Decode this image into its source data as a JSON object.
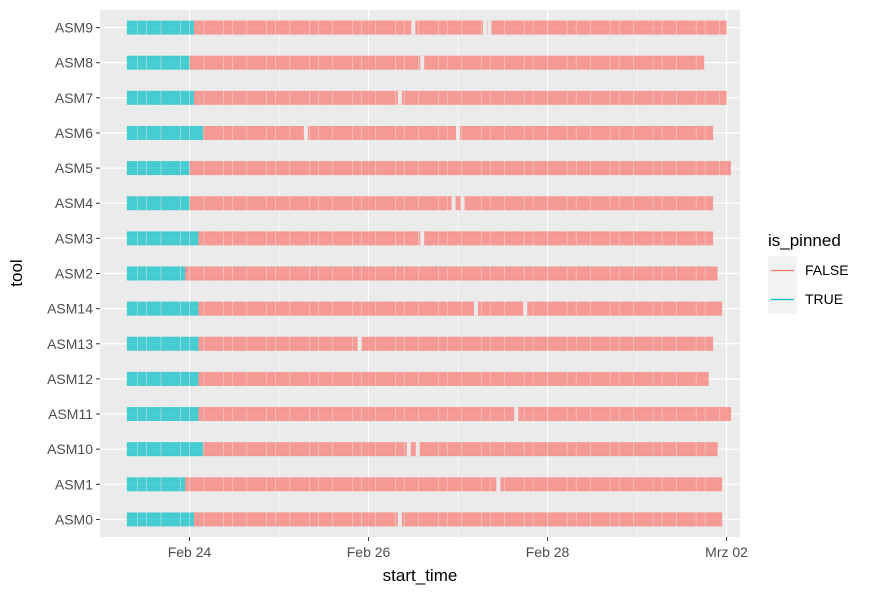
{
  "chart_data": {
    "type": "timeline",
    "title": "",
    "xlabel": "start_time",
    "ylabel": "tool",
    "x_ticks": [
      "Feb 24",
      "Feb 26",
      "Feb 28",
      "Mrz 02"
    ],
    "x_tick_values": [
      24,
      26,
      28,
      30
    ],
    "xlim": [
      23.0,
      30.15
    ],
    "grid": true,
    "legend": {
      "title": "is_pinned",
      "placement": "right",
      "entries": [
        {
          "label": "FALSE",
          "color": "#F8766D"
        },
        {
          "label": "TRUE",
          "color": "#00BFC4"
        }
      ]
    },
    "colors": {
      "FALSE": "#F8766D",
      "TRUE": "#00BFC4",
      "panel": "#EBEBEB",
      "grid": "#FFFFFF"
    },
    "series": [
      {
        "tool": "ASM9",
        "true": [
          23.3,
          24.05
        ],
        "false": [
          24.05,
          30.0
        ],
        "gaps": [
          26.5,
          27.3,
          27.35
        ]
      },
      {
        "tool": "ASM8",
        "true": [
          23.3,
          24.0
        ],
        "false": [
          24.0,
          29.75
        ],
        "gaps": [
          26.6
        ]
      },
      {
        "tool": "ASM7",
        "true": [
          23.3,
          24.05
        ],
        "false": [
          24.05,
          30.0
        ],
        "gaps": [
          26.35
        ]
      },
      {
        "tool": "ASM6",
        "true": [
          23.3,
          24.15
        ],
        "false": [
          24.15,
          29.85
        ],
        "gaps": [
          25.3,
          27.0
        ]
      },
      {
        "tool": "ASM5",
        "true": [
          23.3,
          24.0
        ],
        "false": [
          24.0,
          30.05
        ],
        "gaps": []
      },
      {
        "tool": "ASM4",
        "true": [
          23.3,
          24.0
        ],
        "false": [
          24.0,
          29.85
        ],
        "gaps": [
          26.95,
          27.05
        ]
      },
      {
        "tool": "ASM3",
        "true": [
          23.3,
          24.1
        ],
        "false": [
          24.1,
          29.85
        ],
        "gaps": [
          26.6
        ]
      },
      {
        "tool": "ASM2",
        "true": [
          23.3,
          23.95
        ],
        "false": [
          23.95,
          29.9
        ],
        "gaps": []
      },
      {
        "tool": "ASM14",
        "true": [
          23.3,
          24.1
        ],
        "false": [
          24.1,
          29.95
        ],
        "gaps": [
          27.2,
          27.75
        ]
      },
      {
        "tool": "ASM13",
        "true": [
          23.3,
          24.1
        ],
        "false": [
          24.1,
          29.85
        ],
        "gaps": [
          25.9
        ]
      },
      {
        "tool": "ASM12",
        "true": [
          23.3,
          24.1
        ],
        "false": [
          24.1,
          29.8
        ],
        "gaps": []
      },
      {
        "tool": "ASM11",
        "true": [
          23.3,
          24.1
        ],
        "false": [
          24.1,
          30.05
        ],
        "gaps": [
          27.65
        ]
      },
      {
        "tool": "ASM10",
        "true": [
          23.3,
          24.15
        ],
        "false": [
          24.15,
          29.9
        ],
        "gaps": [
          26.45,
          26.55
        ]
      },
      {
        "tool": "ASM1",
        "true": [
          23.3,
          23.95
        ],
        "false": [
          23.95,
          29.95
        ],
        "gaps": [
          27.45
        ]
      },
      {
        "tool": "ASM0",
        "true": [
          23.3,
          24.05
        ],
        "false": [
          24.05,
          29.95
        ],
        "gaps": [
          26.35
        ]
      }
    ]
  }
}
